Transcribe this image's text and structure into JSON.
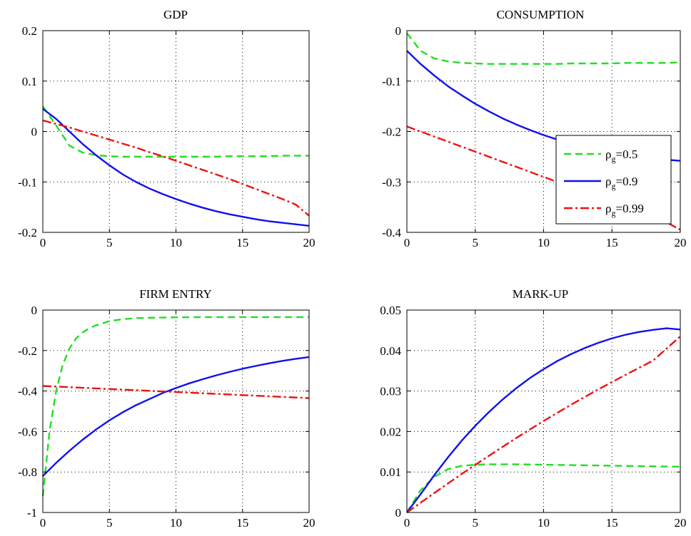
{
  "chart_data": [
    {
      "type": "line",
      "title": "GDP",
      "xlim": [
        0,
        20
      ],
      "ylim": [
        -0.2,
        0.2
      ],
      "xticks": [
        0,
        5,
        10,
        15,
        20
      ],
      "xtick_labels": [
        "0",
        "5",
        "10",
        "15",
        "20"
      ],
      "yticks": [
        0.2,
        0.1,
        0,
        -0.1,
        -0.2
      ],
      "ytick_labels": [
        "0.2",
        "0.1",
        "0",
        "-0.1",
        "-0.2"
      ],
      "grid": true,
      "series": [
        {
          "x": [
            0,
            1,
            2,
            3,
            4,
            5,
            6,
            7,
            8,
            9,
            10,
            11,
            12,
            13,
            14,
            15,
            16,
            17,
            18,
            19,
            20
          ],
          "y": [
            0.05,
            0.012,
            -0.028,
            -0.042,
            -0.047,
            -0.049,
            -0.05,
            -0.05,
            -0.05,
            -0.05,
            -0.05,
            -0.05,
            -0.05,
            -0.05,
            -0.049,
            -0.049,
            -0.049,
            -0.049,
            -0.048,
            -0.048,
            -0.048
          ]
        },
        {
          "x": [
            0,
            1,
            2,
            3,
            4,
            5,
            6,
            7,
            8,
            9,
            10,
            11,
            12,
            13,
            14,
            15,
            16,
            17,
            18,
            19,
            20
          ],
          "y": [
            0.045,
            0.025,
            0.0,
            -0.025,
            -0.047,
            -0.067,
            -0.085,
            -0.1,
            -0.113,
            -0.124,
            -0.134,
            -0.143,
            -0.151,
            -0.158,
            -0.164,
            -0.169,
            -0.174,
            -0.178,
            -0.181,
            -0.184,
            -0.187
          ]
        },
        {
          "x": [
            0,
            1,
            2,
            3,
            4,
            5,
            6,
            7,
            8,
            9,
            10,
            11,
            12,
            13,
            14,
            15,
            16,
            17,
            18,
            19,
            20
          ],
          "y": [
            0.022,
            0.015,
            0.008,
            0.0,
            -0.008,
            -0.016,
            -0.024,
            -0.032,
            -0.041,
            -0.049,
            -0.058,
            -0.067,
            -0.076,
            -0.085,
            -0.094,
            -0.104,
            -0.114,
            -0.124,
            -0.134,
            -0.145,
            -0.167
          ]
        }
      ]
    },
    {
      "type": "line",
      "title": "CONSUMPTION",
      "xlim": [
        0,
        20
      ],
      "ylim": [
        -0.4,
        0
      ],
      "xticks": [
        0,
        5,
        10,
        15,
        20
      ],
      "xtick_labels": [
        "0",
        "5",
        "10",
        "15",
        "20"
      ],
      "yticks": [
        0,
        -0.1,
        -0.2,
        -0.3,
        -0.4
      ],
      "ytick_labels": [
        "0",
        "-0.1",
        "-0.2",
        "-0.3",
        "-0.4"
      ],
      "grid": true,
      "legend": {
        "position": "right",
        "entries": [
          {
            "label_main": "ρ",
            "label_sub": "g",
            "label_value": "=0.5"
          },
          {
            "label_main": "ρ",
            "label_sub": "g",
            "label_value": "=0.9"
          },
          {
            "label_main": "ρ",
            "label_sub": "g",
            "label_value": "=0.99"
          }
        ]
      },
      "series": [
        {
          "x": [
            0,
            1,
            2,
            3,
            4,
            5,
            6,
            7,
            8,
            9,
            10,
            11,
            12,
            13,
            14,
            15,
            16,
            17,
            18,
            19,
            20
          ],
          "y": [
            -0.005,
            -0.04,
            -0.055,
            -0.061,
            -0.064,
            -0.065,
            -0.066,
            -0.066,
            -0.066,
            -0.066,
            -0.066,
            -0.066,
            -0.065,
            -0.065,
            -0.065,
            -0.065,
            -0.064,
            -0.064,
            -0.064,
            -0.064,
            -0.063
          ]
        },
        {
          "x": [
            0,
            1,
            2,
            3,
            4,
            5,
            6,
            7,
            8,
            9,
            10,
            11,
            12,
            13,
            14,
            15,
            16,
            17,
            18,
            19,
            20
          ],
          "y": [
            -0.04,
            -0.066,
            -0.089,
            -0.11,
            -0.128,
            -0.145,
            -0.16,
            -0.174,
            -0.186,
            -0.197,
            -0.207,
            -0.216,
            -0.224,
            -0.231,
            -0.237,
            -0.242,
            -0.246,
            -0.25,
            -0.253,
            -0.256,
            -0.258
          ]
        },
        {
          "x": [
            0,
            1,
            2,
            3,
            4,
            5,
            6,
            7,
            8,
            9,
            10,
            11,
            12,
            13,
            14,
            15,
            16,
            17,
            18,
            19,
            20
          ],
          "y": [
            -0.19,
            -0.2,
            -0.21,
            -0.22,
            -0.23,
            -0.24,
            -0.25,
            -0.26,
            -0.27,
            -0.28,
            -0.29,
            -0.3,
            -0.31,
            -0.32,
            -0.33,
            -0.34,
            -0.35,
            -0.36,
            -0.37,
            -0.38,
            -0.395
          ]
        }
      ]
    },
    {
      "type": "line",
      "title": "FIRM ENTRY",
      "xlim": [
        0,
        20
      ],
      "ylim": [
        -1,
        0
      ],
      "xticks": [
        0,
        5,
        10,
        15,
        20
      ],
      "xtick_labels": [
        "0",
        "5",
        "10",
        "15",
        "20"
      ],
      "yticks": [
        0,
        -0.2,
        -0.4,
        -0.6,
        -0.8,
        -1
      ],
      "ytick_labels": [
        "0",
        "-0.2",
        "-0.4",
        "-0.6",
        "-0.8",
        "-1"
      ],
      "grid": true,
      "series": [
        {
          "x": [
            0,
            0.5,
            1,
            1.5,
            2,
            2.5,
            3,
            3.5,
            4,
            5,
            6,
            7,
            8,
            10,
            12,
            14,
            16,
            18,
            20
          ],
          "y": [
            -0.92,
            -0.6,
            -0.4,
            -0.27,
            -0.19,
            -0.14,
            -0.11,
            -0.09,
            -0.075,
            -0.055,
            -0.045,
            -0.04,
            -0.038,
            -0.036,
            -0.035,
            -0.035,
            -0.035,
            -0.035,
            -0.035
          ]
        },
        {
          "x": [
            0,
            1,
            2,
            3,
            4,
            5,
            6,
            7,
            8,
            9,
            10,
            11,
            12,
            13,
            14,
            15,
            16,
            17,
            18,
            19,
            20
          ],
          "y": [
            -0.82,
            -0.755,
            -0.695,
            -0.64,
            -0.59,
            -0.545,
            -0.505,
            -0.47,
            -0.44,
            -0.41,
            -0.385,
            -0.362,
            -0.342,
            -0.323,
            -0.306,
            -0.29,
            -0.276,
            -0.263,
            -0.251,
            -0.241,
            -0.232
          ]
        },
        {
          "x": [
            0,
            5,
            10,
            15,
            20
          ],
          "y": [
            -0.375,
            -0.39,
            -0.405,
            -0.42,
            -0.435
          ]
        }
      ]
    },
    {
      "type": "line",
      "title": "MARK-UP",
      "xlim": [
        0,
        20
      ],
      "ylim": [
        0,
        0.05
      ],
      "xticks": [
        0,
        5,
        10,
        15,
        20
      ],
      "xtick_labels": [
        "0",
        "5",
        "10",
        "15",
        "20"
      ],
      "yticks": [
        0.05,
        0.04,
        0.03,
        0.02,
        0.01,
        0
      ],
      "ytick_labels": [
        "0.05",
        "0.04",
        "0.03",
        "0.02",
        "0.01",
        "0"
      ],
      "grid": true,
      "series": [
        {
          "x": [
            0,
            1,
            2,
            3,
            4,
            5,
            6,
            8,
            10,
            12,
            14,
            16,
            18,
            20
          ],
          "y": [
            0,
            0.0055,
            0.0088,
            0.0107,
            0.0115,
            0.0118,
            0.0119,
            0.0119,
            0.0118,
            0.0117,
            0.0116,
            0.0115,
            0.0114,
            0.0113
          ]
        },
        {
          "x": [
            0,
            1,
            2,
            3,
            4,
            5,
            6,
            7,
            8,
            9,
            10,
            11,
            12,
            13,
            14,
            15,
            16,
            17,
            18,
            19,
            20
          ],
          "y": [
            0,
            0.0045,
            0.0092,
            0.0136,
            0.0177,
            0.0214,
            0.0248,
            0.0279,
            0.0307,
            0.0332,
            0.0354,
            0.0374,
            0.0391,
            0.0406,
            0.0419,
            0.043,
            0.0439,
            0.0446,
            0.0451,
            0.0455,
            0.0452
          ]
        },
        {
          "x": [
            0,
            2,
            4,
            6,
            8,
            10,
            12,
            14,
            16,
            18,
            20
          ],
          "y": [
            0,
            0.0048,
            0.0095,
            0.014,
            0.0184,
            0.0226,
            0.0266,
            0.0304,
            0.034,
            0.0375,
            0.0435
          ]
        }
      ]
    }
  ],
  "styles": {
    "series_colors": [
      "#22dd22",
      "#1111ee",
      "#ee1111"
    ],
    "series_dash": [
      "dashed",
      "solid",
      "dashdot"
    ]
  }
}
